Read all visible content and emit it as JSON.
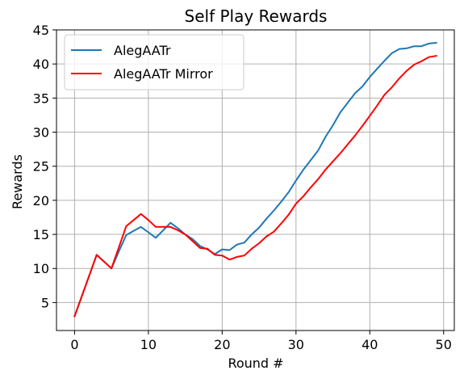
{
  "chart_data": {
    "type": "line",
    "title": "Self Play Rewards",
    "xlabel": "Round #",
    "ylabel": "Rewards",
    "xlim": [
      -2.45,
      51.45
    ],
    "ylim": [
      0.9,
      45.0
    ],
    "xticks": [
      0,
      10,
      20,
      30,
      40,
      50
    ],
    "yticks": [
      5,
      10,
      15,
      20,
      25,
      30,
      35,
      40,
      45
    ],
    "grid": true,
    "legend_position": "top-left",
    "series": [
      {
        "name": "AlegAATr",
        "color": "#1f77b4",
        "x": [
          0,
          1,
          2,
          3,
          4,
          5,
          6,
          7,
          8,
          9,
          10,
          11,
          12,
          13,
          14,
          15,
          16,
          17,
          18,
          19,
          20,
          21,
          22,
          23,
          24,
          25,
          26,
          27,
          28,
          29,
          30,
          31,
          32,
          33,
          34,
          35,
          36,
          37,
          38,
          39,
          40,
          41,
          42,
          43,
          44,
          45,
          46,
          47,
          48,
          49
        ],
        "y": [
          3.0,
          6.0,
          9.0,
          12.0,
          11.0,
          10.0,
          12.5,
          14.9,
          15.5,
          16.1,
          15.3,
          14.5,
          15.6,
          16.7,
          15.9,
          15.0,
          14.3,
          13.3,
          12.8,
          12.1,
          12.8,
          12.7,
          13.5,
          13.8,
          15.0,
          16.0,
          17.3,
          18.5,
          19.8,
          21.2,
          22.9,
          24.5,
          25.9,
          27.3,
          29.3,
          31.0,
          32.9,
          34.3,
          35.7,
          36.7,
          38.1,
          39.3,
          40.5,
          41.6,
          42.2,
          42.3,
          42.6,
          42.6,
          43.0,
          43.1
        ]
      },
      {
        "name": "AlegAATr Mirror",
        "color": "#ff0000",
        "x": [
          0,
          1,
          2,
          3,
          4,
          5,
          6,
          7,
          8,
          9,
          10,
          11,
          12,
          13,
          14,
          15,
          16,
          17,
          18,
          19,
          20,
          21,
          22,
          23,
          24,
          25,
          26,
          27,
          28,
          29,
          30,
          31,
          32,
          33,
          34,
          35,
          36,
          37,
          38,
          39,
          40,
          41,
          42,
          43,
          44,
          45,
          46,
          47,
          48,
          49
        ],
        "y": [
          3.0,
          6.0,
          9.0,
          12.0,
          11.0,
          10.0,
          13.1,
          16.2,
          17.1,
          18.0,
          17.1,
          16.1,
          16.1,
          16.1,
          15.6,
          15.0,
          14.0,
          13.0,
          12.9,
          12.0,
          11.9,
          11.3,
          11.7,
          11.9,
          12.9,
          13.7,
          14.7,
          15.4,
          16.6,
          17.9,
          19.5,
          20.6,
          21.9,
          23.1,
          24.5,
          25.7,
          26.9,
          28.2,
          29.5,
          30.9,
          32.4,
          33.9,
          35.5,
          36.6,
          37.9,
          39.0,
          39.9,
          40.4,
          41.0,
          41.2
        ]
      }
    ]
  }
}
